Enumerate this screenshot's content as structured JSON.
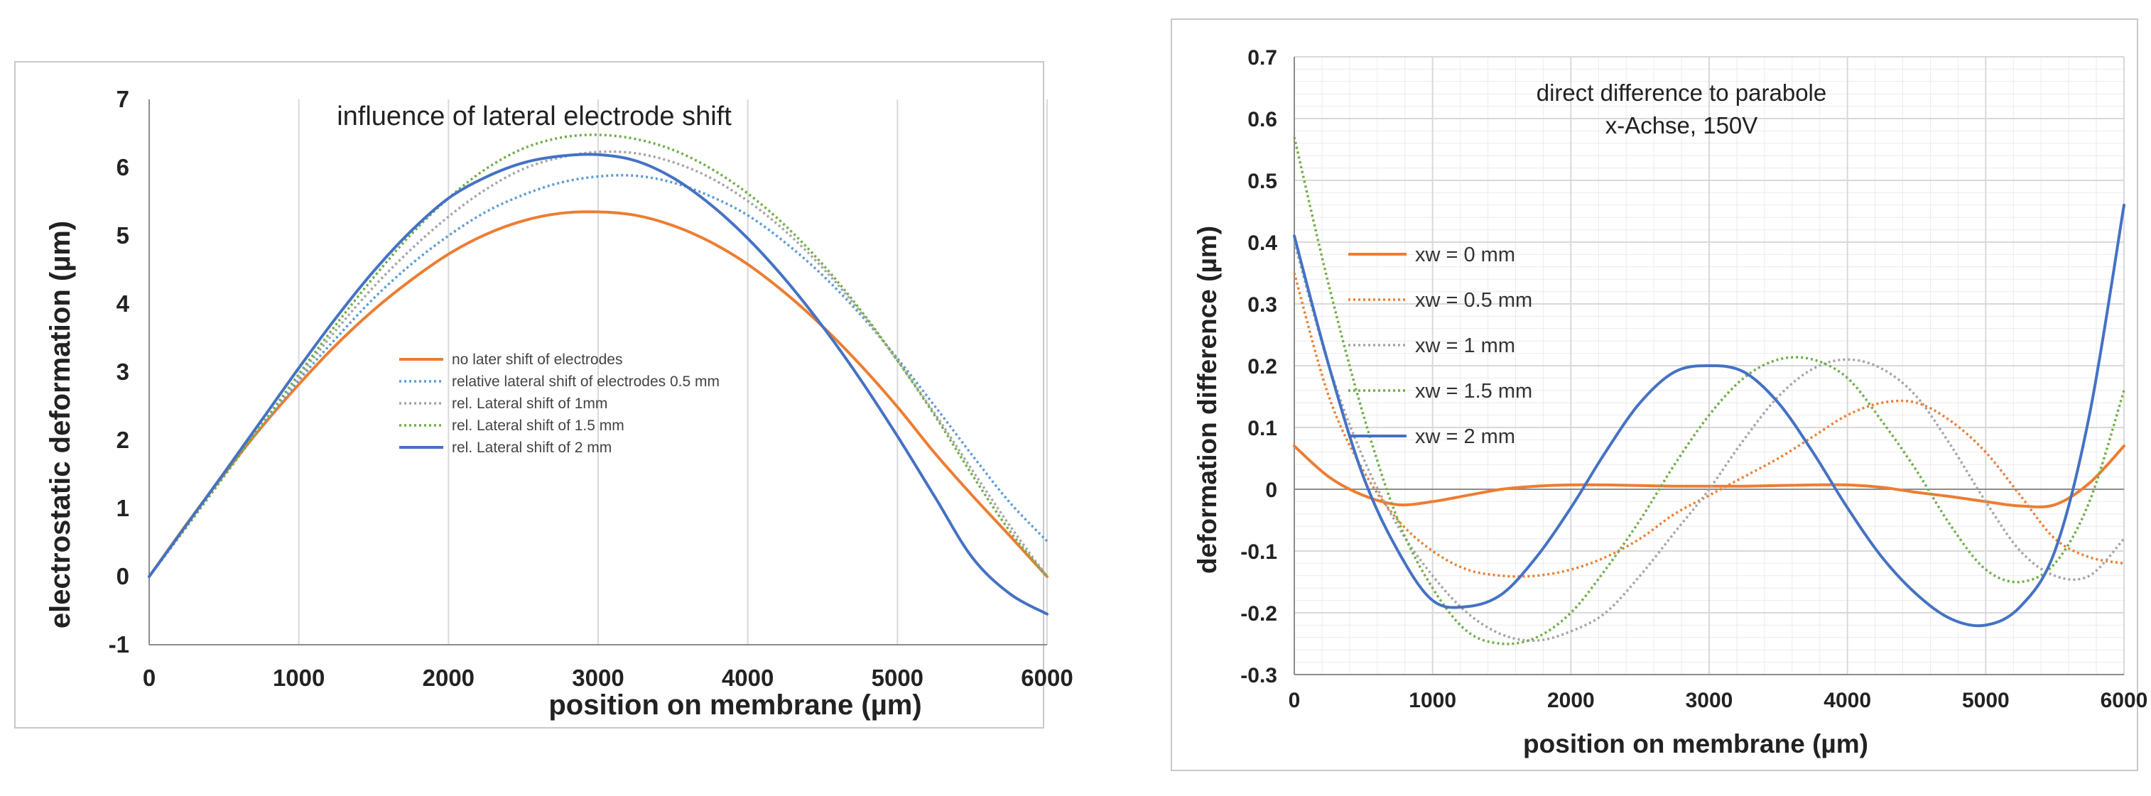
{
  "chart_data": [
    {
      "type": "line",
      "title": "influence of lateral electrode shift",
      "xlabel": "position on membrane (µm)",
      "ylabel": "electrostatic deformation (µm)",
      "xlim": [
        0,
        6000
      ],
      "ylim": [
        -1,
        7
      ],
      "xticks": [
        "0",
        "1000",
        "2000",
        "3000",
        "4000",
        "5000",
        "6000"
      ],
      "yticks": [
        "-1",
        "0",
        "1",
        "2",
        "3",
        "4",
        "5",
        "6",
        "7"
      ],
      "grid": "vertical",
      "legend_position": "center-left",
      "x": [
        0,
        250,
        500,
        750,
        1000,
        1250,
        1500,
        1750,
        2000,
        2250,
        2500,
        2750,
        3000,
        3250,
        3500,
        3750,
        4000,
        4250,
        4500,
        4750,
        5000,
        5250,
        5500,
        5750,
        6000
      ],
      "series": [
        {
          "name": "no later shift of electrodes",
          "color": "#ED7D31",
          "style": "solid",
          "values": [
            0.0,
            0.77,
            1.5,
            2.19,
            2.82,
            3.4,
            3.91,
            4.35,
            4.73,
            5.02,
            5.22,
            5.33,
            5.35,
            5.3,
            5.15,
            4.91,
            4.58,
            4.16,
            3.67,
            3.11,
            2.49,
            1.81,
            1.19,
            0.6,
            0.0
          ]
        },
        {
          "name": "relative lateral shift of electrodes 0.5 mm",
          "color": "#5B9BD5",
          "style": "dotted",
          "values": [
            0.0,
            0.74,
            1.48,
            2.2,
            2.88,
            3.5,
            4.08,
            4.58,
            5.0,
            5.35,
            5.6,
            5.78,
            5.87,
            5.88,
            5.78,
            5.58,
            5.3,
            4.9,
            4.42,
            3.85,
            3.2,
            2.5,
            1.78,
            1.09,
            0.52
          ]
        },
        {
          "name": "rel. Lateral shift of 1mm",
          "color": "#A5A5A5",
          "style": "dotted",
          "values": [
            0.0,
            0.73,
            1.47,
            2.21,
            2.93,
            3.62,
            4.25,
            4.8,
            5.28,
            5.68,
            5.98,
            6.15,
            6.23,
            6.21,
            6.08,
            5.85,
            5.51,
            5.07,
            4.53,
            3.89,
            3.17,
            2.39,
            1.56,
            0.75,
            0.0
          ]
        },
        {
          "name": "rel. Lateral shift of 1.5 mm",
          "color": "#70AD47",
          "style": "dotted",
          "values": [
            0.0,
            0.73,
            1.47,
            2.22,
            2.97,
            3.7,
            4.39,
            5.02,
            5.55,
            5.98,
            6.28,
            6.44,
            6.48,
            6.42,
            6.26,
            5.99,
            5.62,
            5.15,
            4.58,
            3.92,
            3.17,
            2.36,
            1.49,
            0.67,
            0.0
          ]
        },
        {
          "name": "rel. Lateral shift of 2 mm",
          "color": "#4472C4",
          "style": "solid",
          "values": [
            0.0,
            0.76,
            1.52,
            2.29,
            3.06,
            3.8,
            4.48,
            5.07,
            5.55,
            5.86,
            6.07,
            6.17,
            6.19,
            6.1,
            5.85,
            5.46,
            4.96,
            4.36,
            3.67,
            2.9,
            2.06,
            1.17,
            0.28,
            -0.25,
            -0.55
          ]
        }
      ]
    },
    {
      "type": "line",
      "title": "direct difference to parabole",
      "subtitle": "x-Achse, 150V",
      "xlabel": "position on membrane (µm)",
      "ylabel": "deformation difference (µm)",
      "xlim": [
        0,
        6000
      ],
      "ylim": [
        -0.3,
        0.7
      ],
      "xticks": [
        "0",
        "1000",
        "2000",
        "3000",
        "4000",
        "5000",
        "6000"
      ],
      "yticks": [
        "-0.3",
        "-0.2",
        "-0.1",
        "0",
        "0.1",
        "0.2",
        "0.3",
        "0.4",
        "0.5",
        "0.6",
        "0.7"
      ],
      "grid": "both",
      "legend_position": "left",
      "x": [
        0,
        250,
        500,
        750,
        1000,
        1250,
        1500,
        1750,
        2000,
        2250,
        2500,
        2750,
        3000,
        3250,
        3500,
        3750,
        4000,
        4250,
        4500,
        4750,
        5000,
        5250,
        5500,
        5750,
        6000
      ],
      "series": [
        {
          "name": "xw = 0 mm",
          "color": "#ED7D31",
          "style": "solid",
          "values": [
            0.07,
            0.02,
            -0.01,
            -0.025,
            -0.02,
            -0.01,
            0.0,
            0.005,
            0.007,
            0.007,
            0.006,
            0.005,
            0.005,
            0.005,
            0.006,
            0.007,
            0.007,
            0.003,
            -0.005,
            -0.012,
            -0.02,
            -0.027,
            -0.025,
            0.01,
            0.07
          ]
        },
        {
          "name": "xw = 0.5 mm",
          "color": "#ED7D31",
          "style": "dotted",
          "values": [
            0.35,
            0.15,
            0.03,
            -0.05,
            -0.1,
            -0.13,
            -0.14,
            -0.14,
            -0.13,
            -0.11,
            -0.08,
            -0.04,
            -0.01,
            0.02,
            0.05,
            0.085,
            0.12,
            0.14,
            0.14,
            0.11,
            0.06,
            -0.01,
            -0.08,
            -0.11,
            -0.12
          ]
        },
        {
          "name": "xw = 1 mm",
          "color": "#A5A5A5",
          "style": "dotted",
          "values": [
            0.4,
            0.2,
            0.05,
            -0.06,
            -0.14,
            -0.2,
            -0.235,
            -0.245,
            -0.23,
            -0.2,
            -0.14,
            -0.07,
            0.0,
            0.08,
            0.15,
            0.195,
            0.21,
            0.195,
            0.15,
            0.07,
            -0.02,
            -0.1,
            -0.14,
            -0.14,
            -0.08
          ]
        },
        {
          "name": "xw = 1.5 mm",
          "color": "#70AD47",
          "style": "dotted",
          "values": [
            0.57,
            0.33,
            0.12,
            -0.05,
            -0.16,
            -0.23,
            -0.25,
            -0.24,
            -0.2,
            -0.13,
            -0.05,
            0.04,
            0.12,
            0.18,
            0.21,
            0.21,
            0.18,
            0.11,
            0.03,
            -0.06,
            -0.13,
            -0.15,
            -0.12,
            -0.02,
            0.16
          ]
        },
        {
          "name": "xw = 2 mm",
          "color": "#4472C4",
          "style": "solid",
          "values": [
            0.41,
            0.2,
            0.02,
            -0.1,
            -0.18,
            -0.19,
            -0.17,
            -0.11,
            -0.03,
            0.06,
            0.14,
            0.19,
            0.2,
            0.19,
            0.14,
            0.06,
            -0.03,
            -0.11,
            -0.17,
            -0.21,
            -0.22,
            -0.19,
            -0.1,
            0.12,
            0.46
          ]
        }
      ]
    }
  ]
}
